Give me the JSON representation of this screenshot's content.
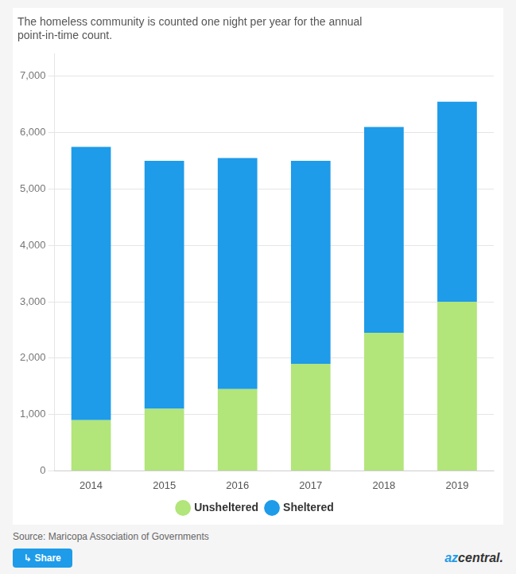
{
  "chart_data": {
    "type": "bar",
    "stacked": true,
    "title": "The homeless community is counted one night per year for the annual\npoint-in-time count.",
    "categories": [
      "2014",
      "2015",
      "2016",
      "2017",
      "2018",
      "2019"
    ],
    "series": [
      {
        "name": "Unsheltered",
        "color": "#b2e57a",
        "values": [
          900,
          1100,
          1450,
          1900,
          2450,
          3000
        ]
      },
      {
        "name": "Sheltered",
        "color": "#1e9be9",
        "values": [
          4850,
          4400,
          4100,
          3600,
          3650,
          3550
        ]
      }
    ],
    "ylim": [
      0,
      7400
    ],
    "yticks": [
      0,
      1000,
      2000,
      3000,
      4000,
      5000,
      6000,
      7000
    ],
    "grid": true,
    "legend": "bottom",
    "annotations": [
      "Source: Maricopa Association of Governments",
      "↳  Share",
      "az",
      "central."
    ]
  }
}
